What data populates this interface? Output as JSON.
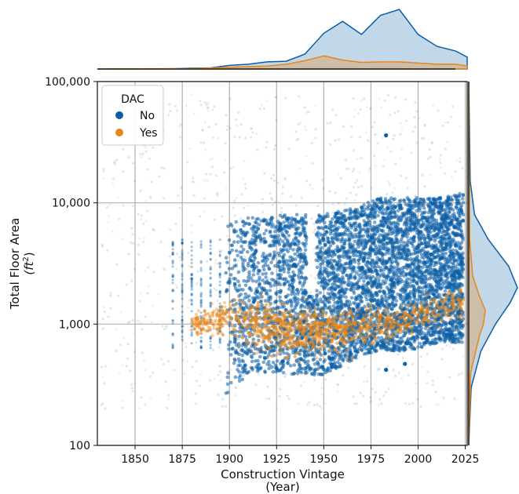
{
  "chart_data": {
    "type": "scatter",
    "subtype": "joint-plot-with-marginal-kde",
    "xlabel": "Construction Vintage",
    "xlabel_line2": "(Year)",
    "ylabel": "Total Floor Area",
    "ylabel_unit_base": "(ft",
    "ylabel_unit_exp": "2",
    "ylabel_unit_close": ")",
    "x_ticks": [
      1850,
      1875,
      1900,
      1925,
      1950,
      1975,
      2000,
      2025
    ],
    "xlim": [
      1830,
      2026
    ],
    "y_scale": "log",
    "ylim": [
      100,
      100000
    ],
    "y_ticks": [
      100,
      1000,
      10000,
      100000
    ],
    "y_tick_labels": [
      "100",
      "1,000",
      "10,000",
      "100,000"
    ],
    "grid": true,
    "legend": {
      "title": "DAC",
      "position": "top-left",
      "entries": [
        "No",
        "Yes"
      ]
    },
    "series": [
      {
        "name": "No",
        "color": "#0b5fa5",
        "density_core": [
          {
            "x": 1900,
            "ylo": 250,
            "yhi": 7000
          },
          {
            "x": 1910,
            "ylo": 400,
            "yhi": 7500
          },
          {
            "x": 1925,
            "ylo": 400,
            "yhi": 8000
          },
          {
            "x": 1935,
            "ylo": 380,
            "yhi": 8000
          },
          {
            "x": 1950,
            "ylo": 380,
            "yhi": 8000
          },
          {
            "x": 1965,
            "ylo": 500,
            "yhi": 9000
          },
          {
            "x": 1980,
            "ylo": 600,
            "yhi": 11000
          },
          {
            "x": 1995,
            "ylo": 600,
            "yhi": 11000
          },
          {
            "x": 2010,
            "ylo": 700,
            "yhi": 11000
          },
          {
            "x": 2023,
            "ylo": 700,
            "yhi": 12000
          }
        ],
        "highlighted_points": [
          {
            "x": 1983,
            "y": 420
          },
          {
            "x": 1993,
            "y": 470
          },
          {
            "x": 1983,
            "y": 36000
          }
        ],
        "marginal_x_kde": [
          {
            "x": 1830,
            "d": 0.0
          },
          {
            "x": 1850,
            "d": 0.002
          },
          {
            "x": 1870,
            "d": 0.005
          },
          {
            "x": 1890,
            "d": 0.02
          },
          {
            "x": 1900,
            "d": 0.06
          },
          {
            "x": 1910,
            "d": 0.08
          },
          {
            "x": 1920,
            "d": 0.12
          },
          {
            "x": 1930,
            "d": 0.13
          },
          {
            "x": 1940,
            "d": 0.25
          },
          {
            "x": 1950,
            "d": 0.6
          },
          {
            "x": 1960,
            "d": 0.8
          },
          {
            "x": 1970,
            "d": 0.58
          },
          {
            "x": 1980,
            "d": 0.9
          },
          {
            "x": 1990,
            "d": 1.0
          },
          {
            "x": 2000,
            "d": 0.58
          },
          {
            "x": 2010,
            "d": 0.38
          },
          {
            "x": 2020,
            "d": 0.3
          },
          {
            "x": 2026,
            "d": 0.2
          }
        ],
        "marginal_y_kde": [
          {
            "y": 100,
            "d": 0.0
          },
          {
            "y": 300,
            "d": 0.05
          },
          {
            "y": 600,
            "d": 0.25
          },
          {
            "y": 1000,
            "d": 0.55
          },
          {
            "y": 1500,
            "d": 0.85
          },
          {
            "y": 2000,
            "d": 1.0
          },
          {
            "y": 3000,
            "d": 0.82
          },
          {
            "y": 5000,
            "d": 0.4
          },
          {
            "y": 8000,
            "d": 0.12
          },
          {
            "y": 15000,
            "d": 0.03
          },
          {
            "y": 100000,
            "d": 0.0
          }
        ]
      },
      {
        "name": "Yes",
        "color": "#e8861a",
        "density_core": [
          {
            "x": 1880,
            "ylo": 700,
            "yhi": 1400
          },
          {
            "x": 1900,
            "ylo": 500,
            "yhi": 2500
          },
          {
            "x": 1915,
            "ylo": 350,
            "yhi": 2800
          },
          {
            "x": 1925,
            "ylo": 300,
            "yhi": 2800
          },
          {
            "x": 1940,
            "ylo": 320,
            "yhi": 2500
          },
          {
            "x": 1955,
            "ylo": 350,
            "yhi": 2300
          },
          {
            "x": 1975,
            "ylo": 450,
            "yhi": 2000
          },
          {
            "x": 1995,
            "ylo": 600,
            "yhi": 2200
          },
          {
            "x": 2010,
            "ylo": 700,
            "yhi": 2500
          },
          {
            "x": 2023,
            "ylo": 800,
            "yhi": 2800
          }
        ],
        "marginal_x_kde": [
          {
            "x": 1830,
            "d": 0.0
          },
          {
            "x": 1880,
            "d": 0.005
          },
          {
            "x": 1900,
            "d": 0.03
          },
          {
            "x": 1920,
            "d": 0.05
          },
          {
            "x": 1930,
            "d": 0.08
          },
          {
            "x": 1940,
            "d": 0.14
          },
          {
            "x": 1950,
            "d": 0.22
          },
          {
            "x": 1960,
            "d": 0.15
          },
          {
            "x": 1970,
            "d": 0.11
          },
          {
            "x": 1980,
            "d": 0.12
          },
          {
            "x": 1990,
            "d": 0.12
          },
          {
            "x": 2000,
            "d": 0.1
          },
          {
            "x": 2010,
            "d": 0.08
          },
          {
            "x": 2020,
            "d": 0.08
          },
          {
            "x": 2026,
            "d": 0.05
          }
        ],
        "marginal_y_kde": [
          {
            "y": 100,
            "d": 0.0
          },
          {
            "y": 400,
            "d": 0.04
          },
          {
            "y": 800,
            "d": 0.22
          },
          {
            "y": 1000,
            "d": 0.3
          },
          {
            "y": 1300,
            "d": 0.34
          },
          {
            "y": 1700,
            "d": 0.22
          },
          {
            "y": 2500,
            "d": 0.08
          },
          {
            "y": 5000,
            "d": 0.02
          },
          {
            "y": 100000,
            "d": 0.0
          }
        ]
      }
    ]
  }
}
